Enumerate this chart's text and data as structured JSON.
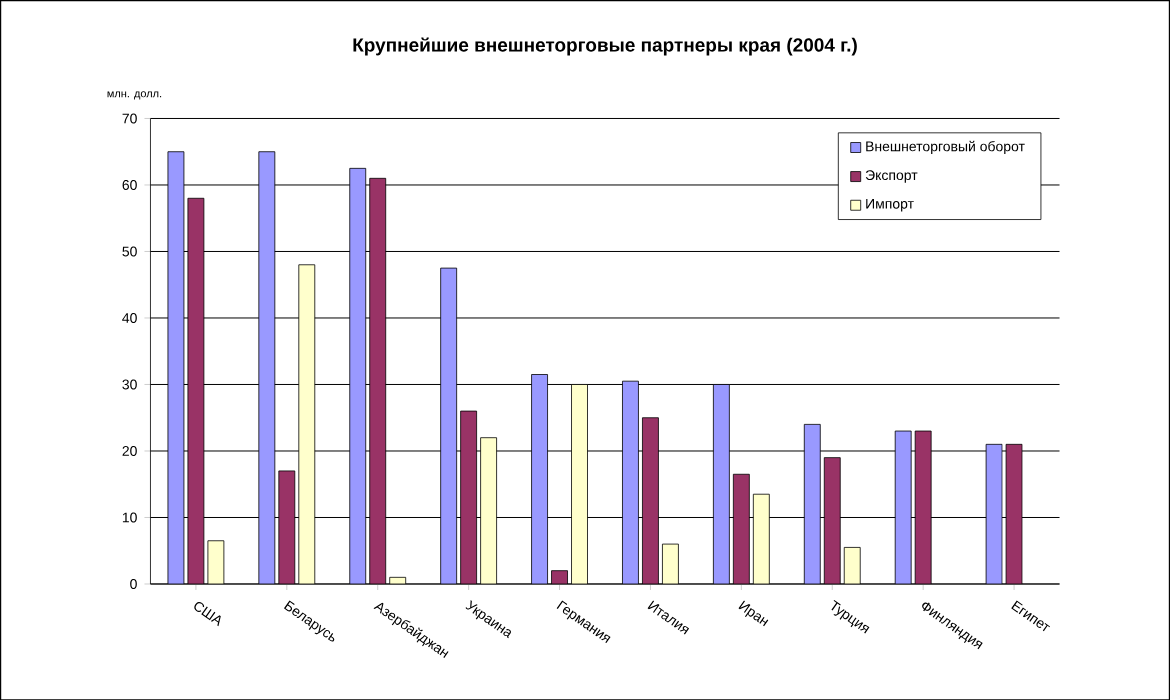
{
  "chart_data": {
    "type": "bar",
    "title": "Крупнейшие внешнеторговые партнеры края (2004 г.)",
    "ylabel": "млн. долл.",
    "categories": [
      "США",
      "Беларусь",
      "Азербайджан",
      "Украина",
      "Германия",
      "Италия",
      "Иран",
      "Турция",
      "Финляндия",
      "Египет"
    ],
    "series": [
      {
        "name": "Внешнеторговый оборот",
        "color": "#9999ff",
        "values": [
          65,
          65,
          62.5,
          47.5,
          31.5,
          30.5,
          30,
          24,
          23,
          21
        ]
      },
      {
        "name": "Экспорт",
        "color": "#993366",
        "values": [
          58,
          17,
          61,
          26,
          2,
          25,
          16.5,
          19,
          23,
          21
        ]
      },
      {
        "name": "Импорт",
        "color": "#ffffcc",
        "values": [
          6.5,
          48,
          1,
          22,
          30,
          6,
          13.5,
          5.5,
          null,
          null
        ]
      }
    ],
    "ylim": [
      0,
      70
    ],
    "yticks": [
      0,
      10,
      20,
      30,
      40,
      50,
      60,
      70
    ],
    "grid": "y",
    "legend": "top right"
  }
}
